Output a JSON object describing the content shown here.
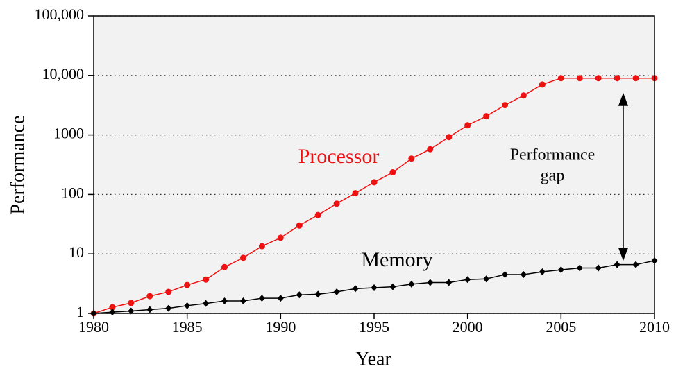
{
  "chart_data": {
    "type": "line",
    "x_label": "Year",
    "y_label": "Performance",
    "x": [
      1980,
      1981,
      1982,
      1983,
      1984,
      1985,
      1986,
      1987,
      1988,
      1989,
      1990,
      1991,
      1992,
      1993,
      1994,
      1995,
      1996,
      1997,
      1998,
      1999,
      2000,
      2001,
      2002,
      2003,
      2004,
      2005,
      2006,
      2007,
      2008,
      2009,
      2010
    ],
    "series": [
      {
        "name": "Processor",
        "color": "#ee1111",
        "marker": "circle",
        "values": [
          1,
          1.27,
          1.5,
          1.95,
          2.3,
          3.0,
          3.7,
          6,
          8.6,
          13.5,
          18.7,
          30,
          45,
          70,
          105,
          160,
          235,
          400,
          575,
          920,
          1450,
          2060,
          3170,
          4600,
          7050,
          9000,
          9000,
          9000,
          9000,
          9000,
          9000
        ]
      },
      {
        "name": "Memory",
        "color": "#000000",
        "marker": "diamond",
        "values": [
          1,
          1.05,
          1.1,
          1.16,
          1.22,
          1.35,
          1.47,
          1.62,
          1.62,
          1.8,
          1.8,
          2.05,
          2.1,
          2.3,
          2.6,
          2.7,
          2.8,
          3.1,
          3.3,
          3.3,
          3.7,
          3.8,
          4.5,
          4.5,
          5,
          5.4,
          5.8,
          5.8,
          6.6,
          6.6,
          7.7
        ]
      }
    ],
    "gap_label": [
      "Performance",
      "gap"
    ],
    "xlim": [
      1980,
      2010
    ],
    "xticks": [
      1980,
      1985,
      1990,
      1995,
      2000,
      2005,
      2010
    ],
    "ylim": [
      1,
      100000
    ],
    "log_y": true,
    "yticks": [
      1,
      10,
      100,
      1000,
      {
        "value": 10000,
        "label": "10,000"
      },
      {
        "value": 100000,
        "label": "100,000"
      }
    ],
    "grid": true
  }
}
